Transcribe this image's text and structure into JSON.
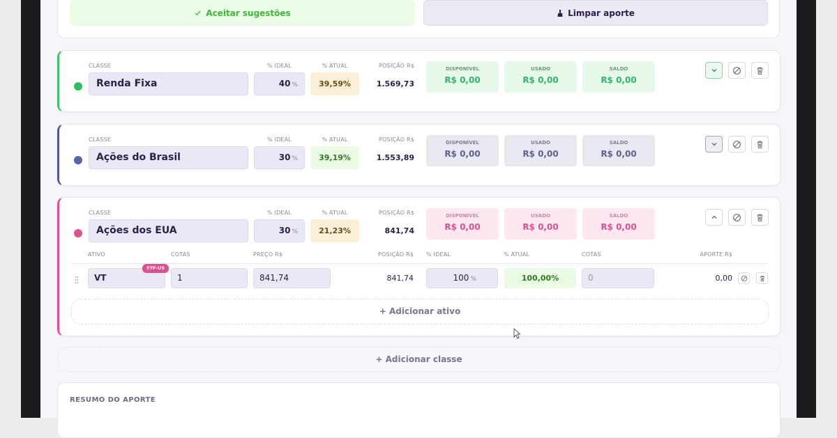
{
  "actions": {
    "accept": "Aceitar sugestões",
    "clear": "Limpar aporte"
  },
  "column_labels": {
    "class": "CLASSE",
    "ideal": "% IDEAL",
    "current": "% ATUAL",
    "position": "POSIÇÃO R$",
    "available": "DISPONÍVEL",
    "used": "USADO",
    "balance": "SALDO"
  },
  "classes": [
    {
      "name": "Renda Fixa",
      "ideal": "40",
      "ideal_unit": "%",
      "current": "39,59%",
      "position": "1.569,73",
      "available": "R$ 0,00",
      "used": "R$ 0,00",
      "balance": "R$ 0,00"
    },
    {
      "name": "Ações do Brasil",
      "ideal": "30",
      "ideal_unit": "%",
      "current": "39,19%",
      "position": "1.553,89",
      "available": "R$ 0,00",
      "used": "R$ 0,00",
      "balance": "R$ 0,00"
    },
    {
      "name": "Ações dos EUA",
      "ideal": "30",
      "ideal_unit": "%",
      "current": "21,23%",
      "position": "841,74",
      "available": "R$ 0,00",
      "used": "R$ 0,00",
      "balance": "R$ 0,00"
    }
  ],
  "asset_table": {
    "headers": [
      "ATIVO",
      "COTAS",
      "PREÇO R$",
      "POSIÇÃO R$",
      "% IDEAL",
      "% ATUAL",
      "COTAS",
      "APORTE R$"
    ],
    "rows": [
      {
        "ticker": "VT",
        "badge": "ETF-US",
        "shares": "1",
        "price": "841,74",
        "position": "841,74",
        "ideal": "100",
        "ideal_unit": "%",
        "current": "100,00%",
        "buy_shares": "0",
        "contribution": "0,00"
      }
    ],
    "add_asset": "+ Adicionar ativo"
  },
  "add_class": "+ Adicionar classe",
  "summary": {
    "title": "RESUMO DO APORTE"
  }
}
